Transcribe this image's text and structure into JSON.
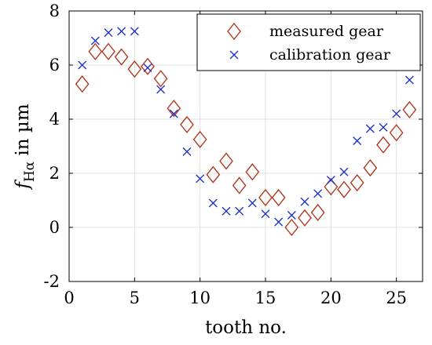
{
  "chart_data": {
    "type": "scatter",
    "xlabel": "tooth no.",
    "ylabel_symbol": "f",
    "ylabel_subscript": "Hα",
    "ylabel_suffix": " in µm",
    "xlim": [
      0,
      27
    ],
    "ylim": [
      -2,
      8
    ],
    "xticks": [
      0,
      5,
      10,
      15,
      20,
      25
    ],
    "yticks": [
      -2,
      0,
      2,
      4,
      6,
      8
    ],
    "grid": true,
    "legend_position": "top-right",
    "series": [
      {
        "name": "measured gear",
        "marker": "diamond",
        "color": "#b03a20",
        "x": [
          1,
          2,
          3,
          4,
          5,
          6,
          7,
          8,
          9,
          10,
          11,
          12,
          13,
          14,
          15,
          16,
          17,
          18,
          19,
          20,
          21,
          22,
          23,
          24,
          25,
          26
        ],
        "y": [
          5.3,
          6.5,
          6.5,
          6.3,
          5.85,
          5.95,
          5.5,
          4.4,
          3.8,
          3.25,
          1.95,
          2.45,
          1.55,
          2.05,
          1.1,
          1.1,
          0.0,
          0.35,
          0.55,
          1.5,
          1.4,
          1.65,
          2.2,
          3.05,
          3.5,
          4.35
        ]
      },
      {
        "name": "calibration gear",
        "marker": "x",
        "color": "#1f35c8",
        "x": [
          1,
          2,
          3,
          4,
          5,
          6,
          7,
          8,
          9,
          10,
          11,
          12,
          13,
          14,
          15,
          16,
          17,
          18,
          19,
          20,
          21,
          22,
          23,
          24,
          25,
          26
        ],
        "y": [
          6.0,
          6.9,
          7.2,
          7.25,
          7.25,
          5.9,
          5.1,
          4.2,
          2.8,
          1.8,
          0.9,
          0.6,
          0.6,
          0.9,
          0.5,
          0.2,
          0.45,
          0.95,
          1.25,
          1.75,
          2.05,
          3.2,
          3.65,
          3.7,
          4.2,
          5.45
        ]
      }
    ]
  }
}
